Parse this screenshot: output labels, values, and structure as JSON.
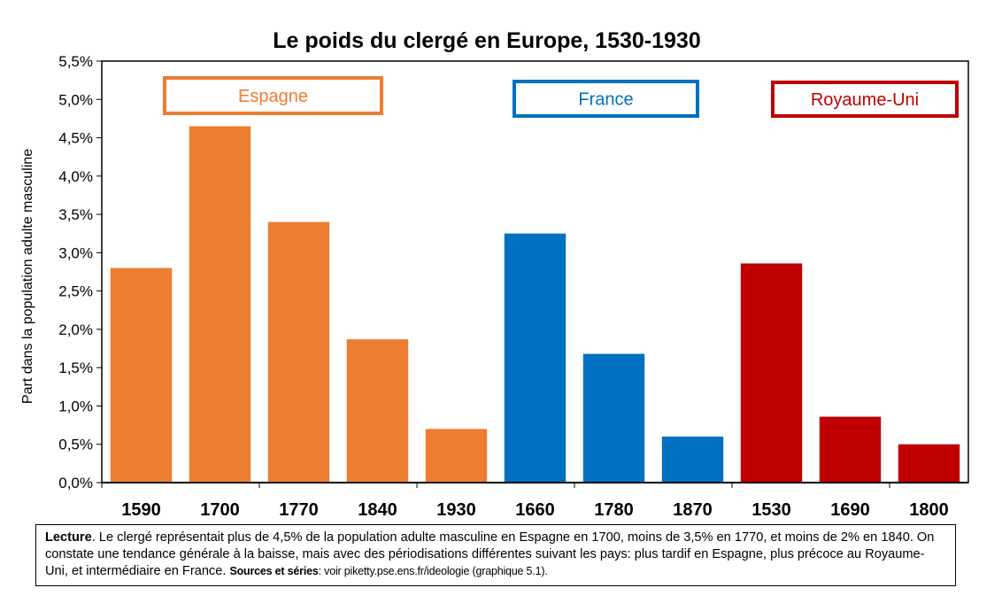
{
  "chart_data": {
    "type": "bar",
    "title": "Le poids du clergé en Europe, 1530-1930",
    "ylabel": "Part dans la population adulte masculine",
    "xlabel": "",
    "ylim": [
      0,
      5.5
    ],
    "yticks": [
      "0,0%",
      "0,5%",
      "1,0%",
      "1,5%",
      "2,0%",
      "2,5%",
      "3,0%",
      "3,5%",
      "4,0%",
      "4,5%",
      "5,0%",
      "5,5%"
    ],
    "grid": false,
    "legend": "top",
    "groups": [
      {
        "name": "Espagne",
        "color": "#ED7D31",
        "categories": [
          "1590",
          "1700",
          "1770",
          "1840",
          "1930"
        ],
        "values": [
          2.8,
          4.65,
          3.4,
          1.87,
          0.7
        ]
      },
      {
        "name": "France",
        "color": "#0070C0",
        "categories": [
          "1660",
          "1780",
          "1870"
        ],
        "values": [
          3.25,
          1.68,
          0.6
        ]
      },
      {
        "name": "Royaume-Uni",
        "color": "#C00000",
        "categories": [
          "1530",
          "1690",
          "1800"
        ],
        "values": [
          2.86,
          0.86,
          0.5
        ]
      }
    ]
  },
  "caption": {
    "lead": "Lecture",
    "text": ". Le clergé représentait plus de 4,5% de la population adulte masculine en Espagne en 1700, moins de 3,5% en 1770, et moins de 2% en 1840. On constate une tendance générale à la baisse, mais avec des périodisations différentes suivant les pays: plus tardif en Espagne, plus précoce au Royaume-Uni, et intermédiaire en France.",
    "sources_label": "Sources et séries",
    "sources_text": ": voir piketty.pse.ens.fr/ideologie (graphique 5.1)."
  }
}
